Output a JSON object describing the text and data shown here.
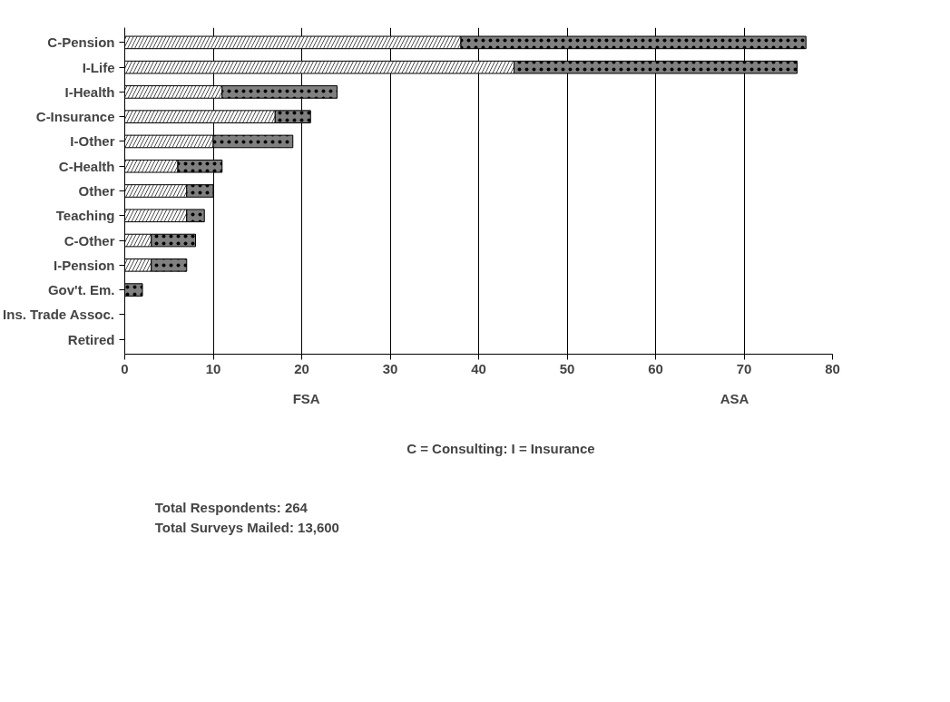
{
  "chart_data": {
    "type": "bar",
    "orientation": "horizontal",
    "stacked": true,
    "categories": [
      "C-Pension",
      "I-Life",
      "I-Health",
      "C-Insurance",
      "I-Other",
      "C-Health",
      "Other",
      "Teaching",
      "C-Other",
      "I-Pension",
      "Gov't. Em.",
      "Ins. Trade Assoc.",
      "Retired"
    ],
    "series": [
      {
        "name": "FSA",
        "color": "#ffffff",
        "values": [
          38,
          44,
          11,
          17,
          10,
          6,
          7,
          7,
          3,
          3,
          0,
          0,
          0
        ]
      },
      {
        "name": "ASA",
        "color": "#808080",
        "values": [
          39,
          32,
          13,
          4,
          9,
          5,
          3,
          2,
          5,
          4,
          2,
          0,
          0
        ]
      }
    ],
    "xlim": [
      0,
      80
    ],
    "xticks": [
      0,
      10,
      20,
      30,
      40,
      50,
      60,
      70,
      80
    ],
    "grid": "x",
    "legend": "bottom",
    "annotations": [
      "C = Consulting:  I = Insurance",
      "Total Respondents: 264",
      "Total Surveys Mailed: 13,600"
    ]
  }
}
